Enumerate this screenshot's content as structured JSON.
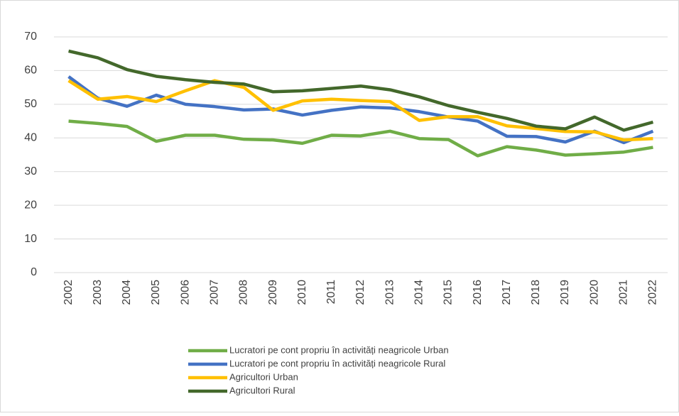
{
  "chart_data": {
    "type": "line",
    "categories": [
      "2002",
      "2003",
      "2004",
      "2005",
      "2006",
      "2007",
      "2008",
      "2009",
      "2010",
      "2011",
      "2012",
      "2013",
      "2014",
      "2015",
      "2016",
      "2017",
      "2018",
      "2019",
      "2020",
      "2021",
      "2022"
    ],
    "series": [
      {
        "name": "Lucratori pe cont propriu în activități neagricole Urban",
        "color": "#70ad47",
        "values": [
          45,
          44.3,
          43.4,
          39,
          40.8,
          40.8,
          39.6,
          39.4,
          38.4,
          40.8,
          40.6,
          42,
          39.8,
          39.5,
          34.7,
          37.4,
          36.4,
          34.9,
          35.3,
          35.8,
          37.2
        ]
      },
      {
        "name": "Lucratori pe cont propriu în activități neagricole Rural",
        "color": "#4472c4",
        "values": [
          58.2,
          51.8,
          49.4,
          52.7,
          50,
          49.3,
          48.3,
          48.6,
          46.8,
          48.2,
          49.2,
          48.9,
          47.8,
          46.2,
          45,
          40.5,
          40.4,
          38.8,
          42,
          38.6,
          42
        ]
      },
      {
        "name": "Agricultori Urban",
        "color": "#ffc000",
        "values": [
          57,
          51.5,
          52.3,
          50.8,
          54,
          57,
          55,
          48.2,
          51,
          51.5,
          51.1,
          50.8,
          45.2,
          46.3,
          46.3,
          43.6,
          42.8,
          41.9,
          41.8,
          39.4,
          39.8
        ]
      },
      {
        "name": "Agricultori Rural",
        "color": "#43682b",
        "values": [
          65.8,
          63.8,
          60.3,
          58.3,
          57.3,
          56.5,
          56,
          53.7,
          54,
          54.7,
          55.4,
          54.3,
          52.2,
          49.6,
          47.6,
          45.8,
          43.5,
          42.7,
          46.2,
          42.3,
          44.7
        ]
      }
    ],
    "ylim": [
      0,
      70
    ],
    "yticks": [
      0,
      10,
      20,
      30,
      40,
      50,
      60,
      70
    ],
    "grid": true,
    "legend": "bottom"
  }
}
